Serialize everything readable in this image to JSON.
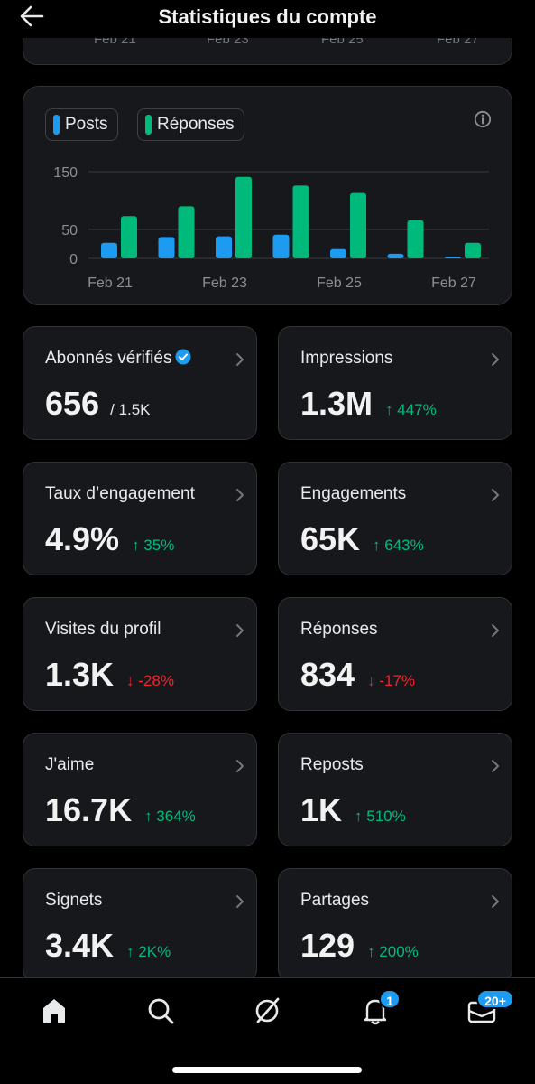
{
  "header": {
    "title": "Statistiques du compte",
    "back_icon": "arrow-left-icon"
  },
  "top_card": {
    "ticks": [
      "Feb 21",
      "Feb 23",
      "Feb 25",
      "Feb 27"
    ]
  },
  "chart_data": {
    "type": "bar",
    "categories": [
      "Feb 21",
      "Feb 22",
      "Feb 23",
      "Feb 24",
      "Feb 25",
      "Feb 26",
      "Feb 27"
    ],
    "x_tick_labels": [
      "Feb 21",
      "Feb 23",
      "Feb 25",
      "Feb 27"
    ],
    "y_tick_labels": [
      "150",
      "50",
      "0"
    ],
    "y_ticks": [
      150,
      50,
      0
    ],
    "ylim": [
      0,
      150
    ],
    "series": [
      {
        "name": "Posts",
        "color": "#1d9bf0",
        "values": [
          27,
          37,
          38,
          41,
          16,
          8,
          3
        ]
      },
      {
        "name": "Réponses",
        "color": "#00ba7c",
        "values": [
          73,
          90,
          141,
          126,
          113,
          66,
          27
        ]
      }
    ],
    "legend": "top-left"
  },
  "stats": [
    {
      "label": "Abonnés vérifiés",
      "value": "656",
      "sub": "/ 1.5K",
      "verified": true
    },
    {
      "label": "Impressions",
      "value": "1.3M",
      "delta": "↑ 447%",
      "trend": "up"
    },
    {
      "label": "Taux d’engagement",
      "value": "4.9%",
      "delta": "↑ 35%",
      "trend": "up"
    },
    {
      "label": "Engagements",
      "value": "65K",
      "delta": "↑ 643%",
      "trend": "up"
    },
    {
      "label": "Visites du profil",
      "value": "1.3K",
      "delta": "↓ -28%",
      "trend": "down"
    },
    {
      "label": "Réponses",
      "value": "834",
      "delta": "↓ -17%",
      "trend": "down"
    },
    {
      "label": "J'aime",
      "value": "16.7K",
      "delta": "↑ 364%",
      "trend": "up"
    },
    {
      "label": "Reposts",
      "value": "1K",
      "delta": "↑ 510%",
      "trend": "up"
    },
    {
      "label": "Signets",
      "value": "3.4K",
      "delta": "↑ 2K%",
      "trend": "up"
    },
    {
      "label": "Partages",
      "value": "129",
      "delta": "↑ 200%",
      "trend": "up"
    }
  ],
  "nav": {
    "items": [
      "home-icon",
      "search-icon",
      "grok-icon",
      "bell-icon",
      "mail-icon"
    ],
    "notifications_badge": "1",
    "messages_badge": "20+"
  },
  "colors": {
    "accent": "#1d9bf0",
    "positive": "#00ba7c",
    "negative": "#f4212e",
    "card": "#16181c",
    "border": "#2f3336"
  }
}
